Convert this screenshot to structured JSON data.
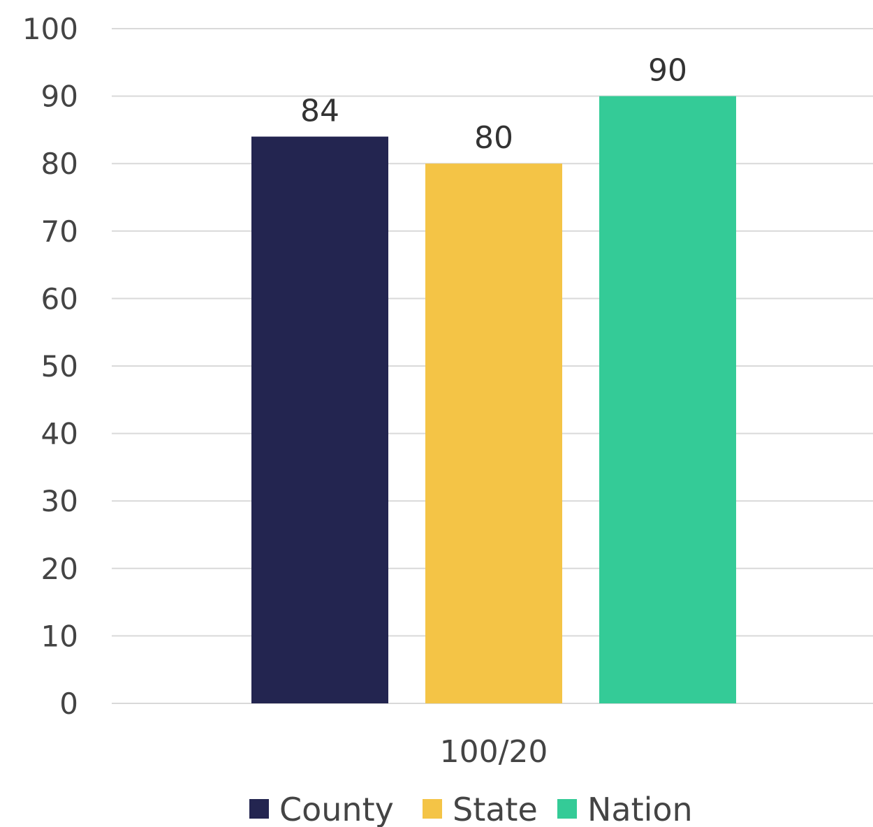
{
  "chart_data": {
    "type": "bar",
    "title": "",
    "xlabel": "",
    "ylabel": "",
    "categories": [
      "100/20"
    ],
    "series": [
      {
        "name": "County",
        "values": [
          84
        ],
        "color": "#232550"
      },
      {
        "name": "State",
        "values": [
          80
        ],
        "color": "#F4C446"
      },
      {
        "name": "Nation",
        "values": [
          90
        ],
        "color": "#34CB97"
      }
    ],
    "ylim": [
      0,
      100
    ],
    "yticks": [
      0,
      10,
      20,
      30,
      40,
      50,
      60,
      70,
      80,
      90,
      100
    ],
    "grid": true,
    "data_labels": true,
    "legend_position": "bottom"
  }
}
